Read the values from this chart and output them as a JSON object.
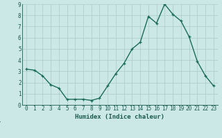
{
  "x": [
    0,
    1,
    2,
    3,
    4,
    5,
    6,
    7,
    8,
    9,
    10,
    11,
    12,
    13,
    14,
    15,
    16,
    17,
    18,
    19,
    20,
    21,
    22,
    23
  ],
  "y": [
    3.2,
    3.1,
    2.6,
    1.8,
    1.5,
    0.5,
    0.5,
    0.5,
    0.4,
    0.6,
    1.7,
    2.8,
    3.7,
    5.0,
    5.6,
    7.9,
    7.3,
    9.0,
    8.1,
    7.5,
    6.1,
    3.9,
    2.6,
    1.7
  ],
  "line_color": "#1a6b5a",
  "marker": "+",
  "marker_size": 3.5,
  "line_width": 1.0,
  "bg_color": "#cce8e6",
  "grid_color": "#aecfcc",
  "xlabel": "Humidex (Indice chaleur)",
  "xlim": [
    -0.5,
    23.5
  ],
  "ylim": [
    0,
    9
  ],
  "xticks": [
    0,
    1,
    2,
    3,
    4,
    5,
    6,
    7,
    8,
    9,
    10,
    11,
    12,
    13,
    14,
    15,
    16,
    17,
    18,
    19,
    20,
    21,
    22,
    23
  ],
  "yticks": [
    0,
    1,
    2,
    3,
    4,
    5,
    6,
    7,
    8,
    9
  ],
  "xlabel_fontsize": 6.5,
  "tick_fontsize": 5.5,
  "axis_color": "#1a5a50",
  "tick_color": "#1a5a50",
  "bottom_bar_color": "#2a6a5a",
  "bottom_bar_height": 0.12
}
